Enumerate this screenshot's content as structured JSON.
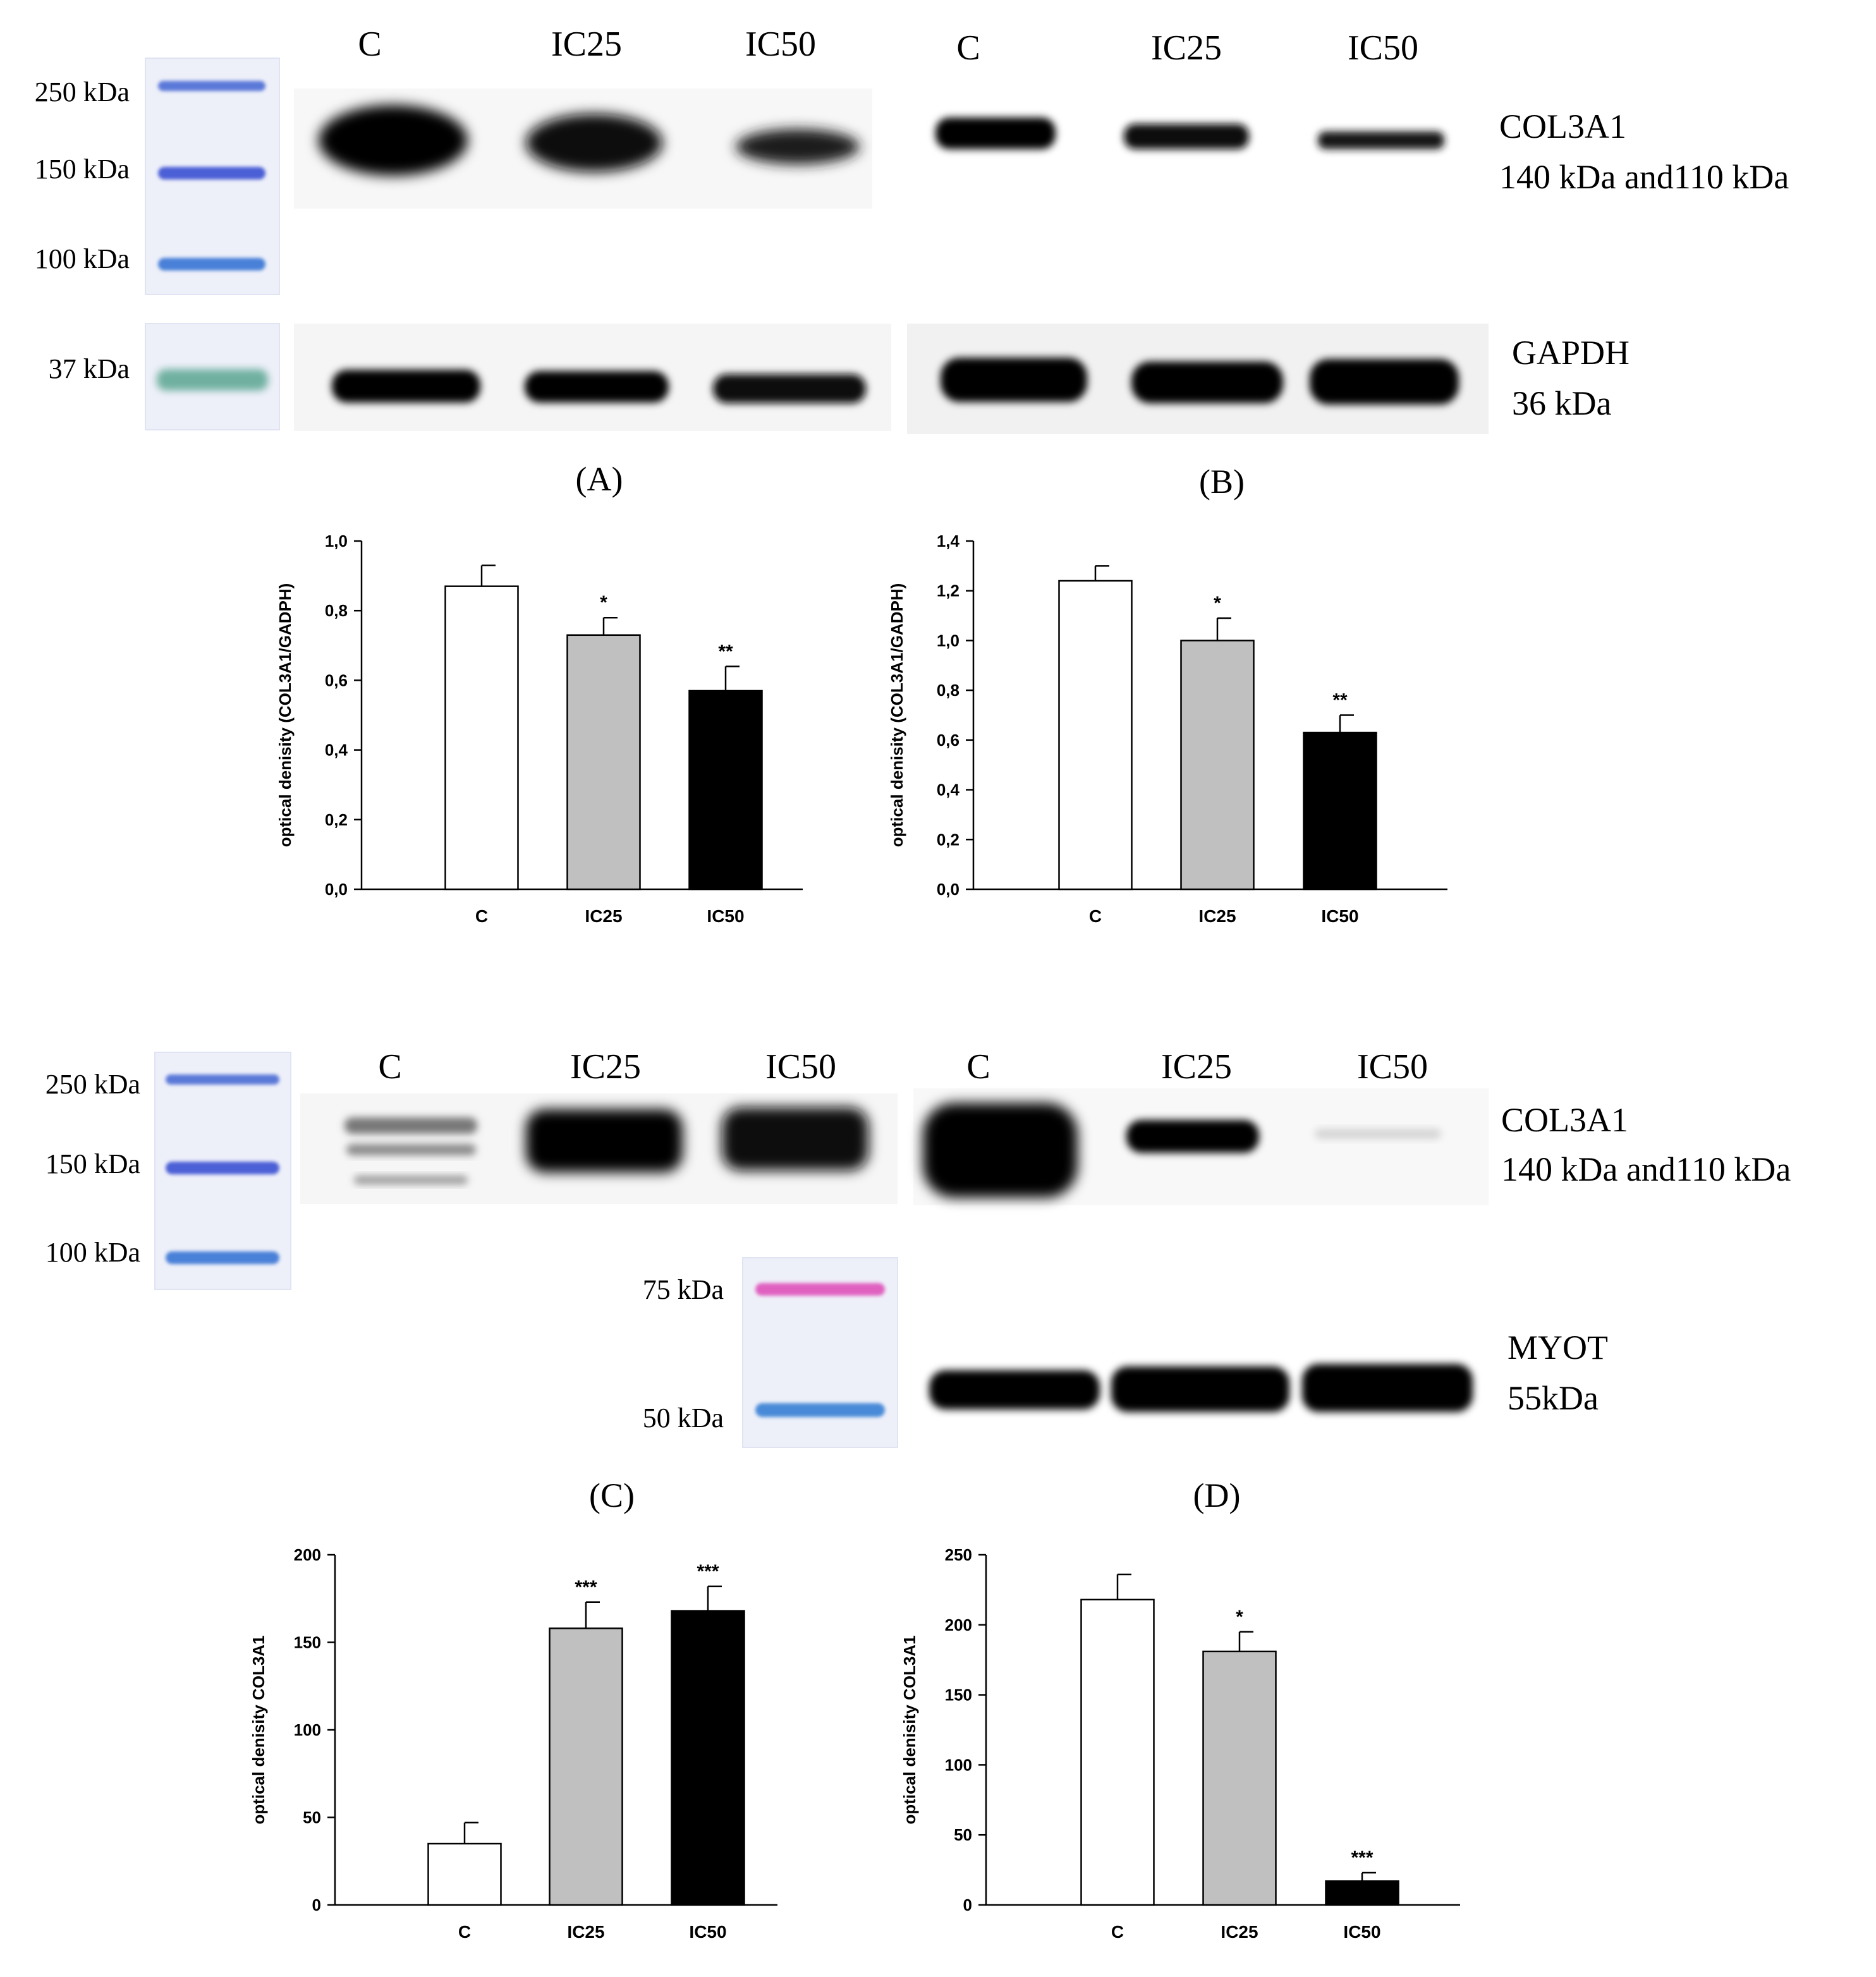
{
  "figure": {
    "blots": [
      {
        "lane_labels": [
          "C",
          "IC25",
          "IC50"
        ],
        "marker_labels": [
          "250 kDa",
          "150 kDa",
          "100 kDa",
          "37 kDa"
        ],
        "protein_labels": [
          {
            "name": "COL3A1",
            "size": "140 kDa and110 kDa"
          },
          {
            "name": "GAPDH",
            "size": "36 kDa"
          }
        ],
        "panel_label": "(A)"
      },
      {
        "lane_labels": [
          "C",
          "IC25",
          "IC50"
        ],
        "panel_label": "(B)"
      },
      {
        "lane_labels": [
          "C",
          "IC25",
          "IC50"
        ],
        "marker_labels": [
          "250 kDa",
          "150 kDa",
          "100 kDa"
        ],
        "marker2_labels": [
          "75 kDa",
          "50 kDa"
        ],
        "panel_label": "(C)"
      },
      {
        "lane_labels": [
          "C",
          "IC25",
          "IC50"
        ],
        "protein_labels": [
          {
            "name": "COL3A1",
            "size": "140 kDa and110 kDa"
          },
          {
            "name": "MYOT",
            "size": "55kDa"
          }
        ],
        "panel_label": "(D)"
      }
    ],
    "colors": {
      "control_bar": "#ffffff",
      "ic25_bar": "#c0c0c0",
      "ic50_bar": "#000000",
      "band": "#0a0a0a",
      "marker_blue": "#4a64d8",
      "marker_pink": "#e060c0",
      "marker_green": "#5aa898",
      "membrane_bg": "#f0f2fa"
    }
  },
  "chart_data": [
    {
      "type": "bar",
      "panel": "A",
      "categories": [
        "C",
        "IC25",
        "IC50"
      ],
      "values": [
        0.87,
        0.73,
        0.57
      ],
      "errors": [
        0.06,
        0.05,
        0.07
      ],
      "significance": [
        "",
        "*",
        "**"
      ],
      "ylabel": "optical denisity (COL3A1/GADPH)",
      "ylim": [
        0,
        1.0
      ],
      "yticks": [
        "0,0",
        "0,2",
        "0,4",
        "0,6",
        "0,8",
        "1,0"
      ]
    },
    {
      "type": "bar",
      "panel": "B",
      "categories": [
        "C",
        "IC25",
        "IC50"
      ],
      "values": [
        1.24,
        1.0,
        0.63
      ],
      "errors": [
        0.06,
        0.09,
        0.07
      ],
      "significance": [
        "",
        "*",
        "**"
      ],
      "ylabel": "optical denisity (COL3A1/GADPH)",
      "ylim": [
        0,
        1.4
      ],
      "yticks": [
        "0,0",
        "0,2",
        "0,4",
        "0,6",
        "0,8",
        "1,0",
        "1,2",
        "1,4"
      ]
    },
    {
      "type": "bar",
      "panel": "C",
      "categories": [
        "C",
        "IC25",
        "IC50"
      ],
      "values": [
        35,
        158,
        168
      ],
      "errors": [
        12,
        15,
        14
      ],
      "significance": [
        "",
        "***",
        "***"
      ],
      "ylabel": "optical denisity COL3A1",
      "ylim": [
        0,
        200
      ],
      "yticks": [
        "0",
        "50",
        "100",
        "150",
        "200"
      ]
    },
    {
      "type": "bar",
      "panel": "D",
      "categories": [
        "C",
        "IC25",
        "IC50"
      ],
      "values": [
        218,
        181,
        17
      ],
      "errors": [
        18,
        14,
        6
      ],
      "significance": [
        "",
        "*",
        "***"
      ],
      "ylabel": "optical denisity COL3A1",
      "ylim": [
        0,
        250
      ],
      "yticks": [
        "0",
        "50",
        "100",
        "150",
        "200",
        "250"
      ]
    }
  ]
}
